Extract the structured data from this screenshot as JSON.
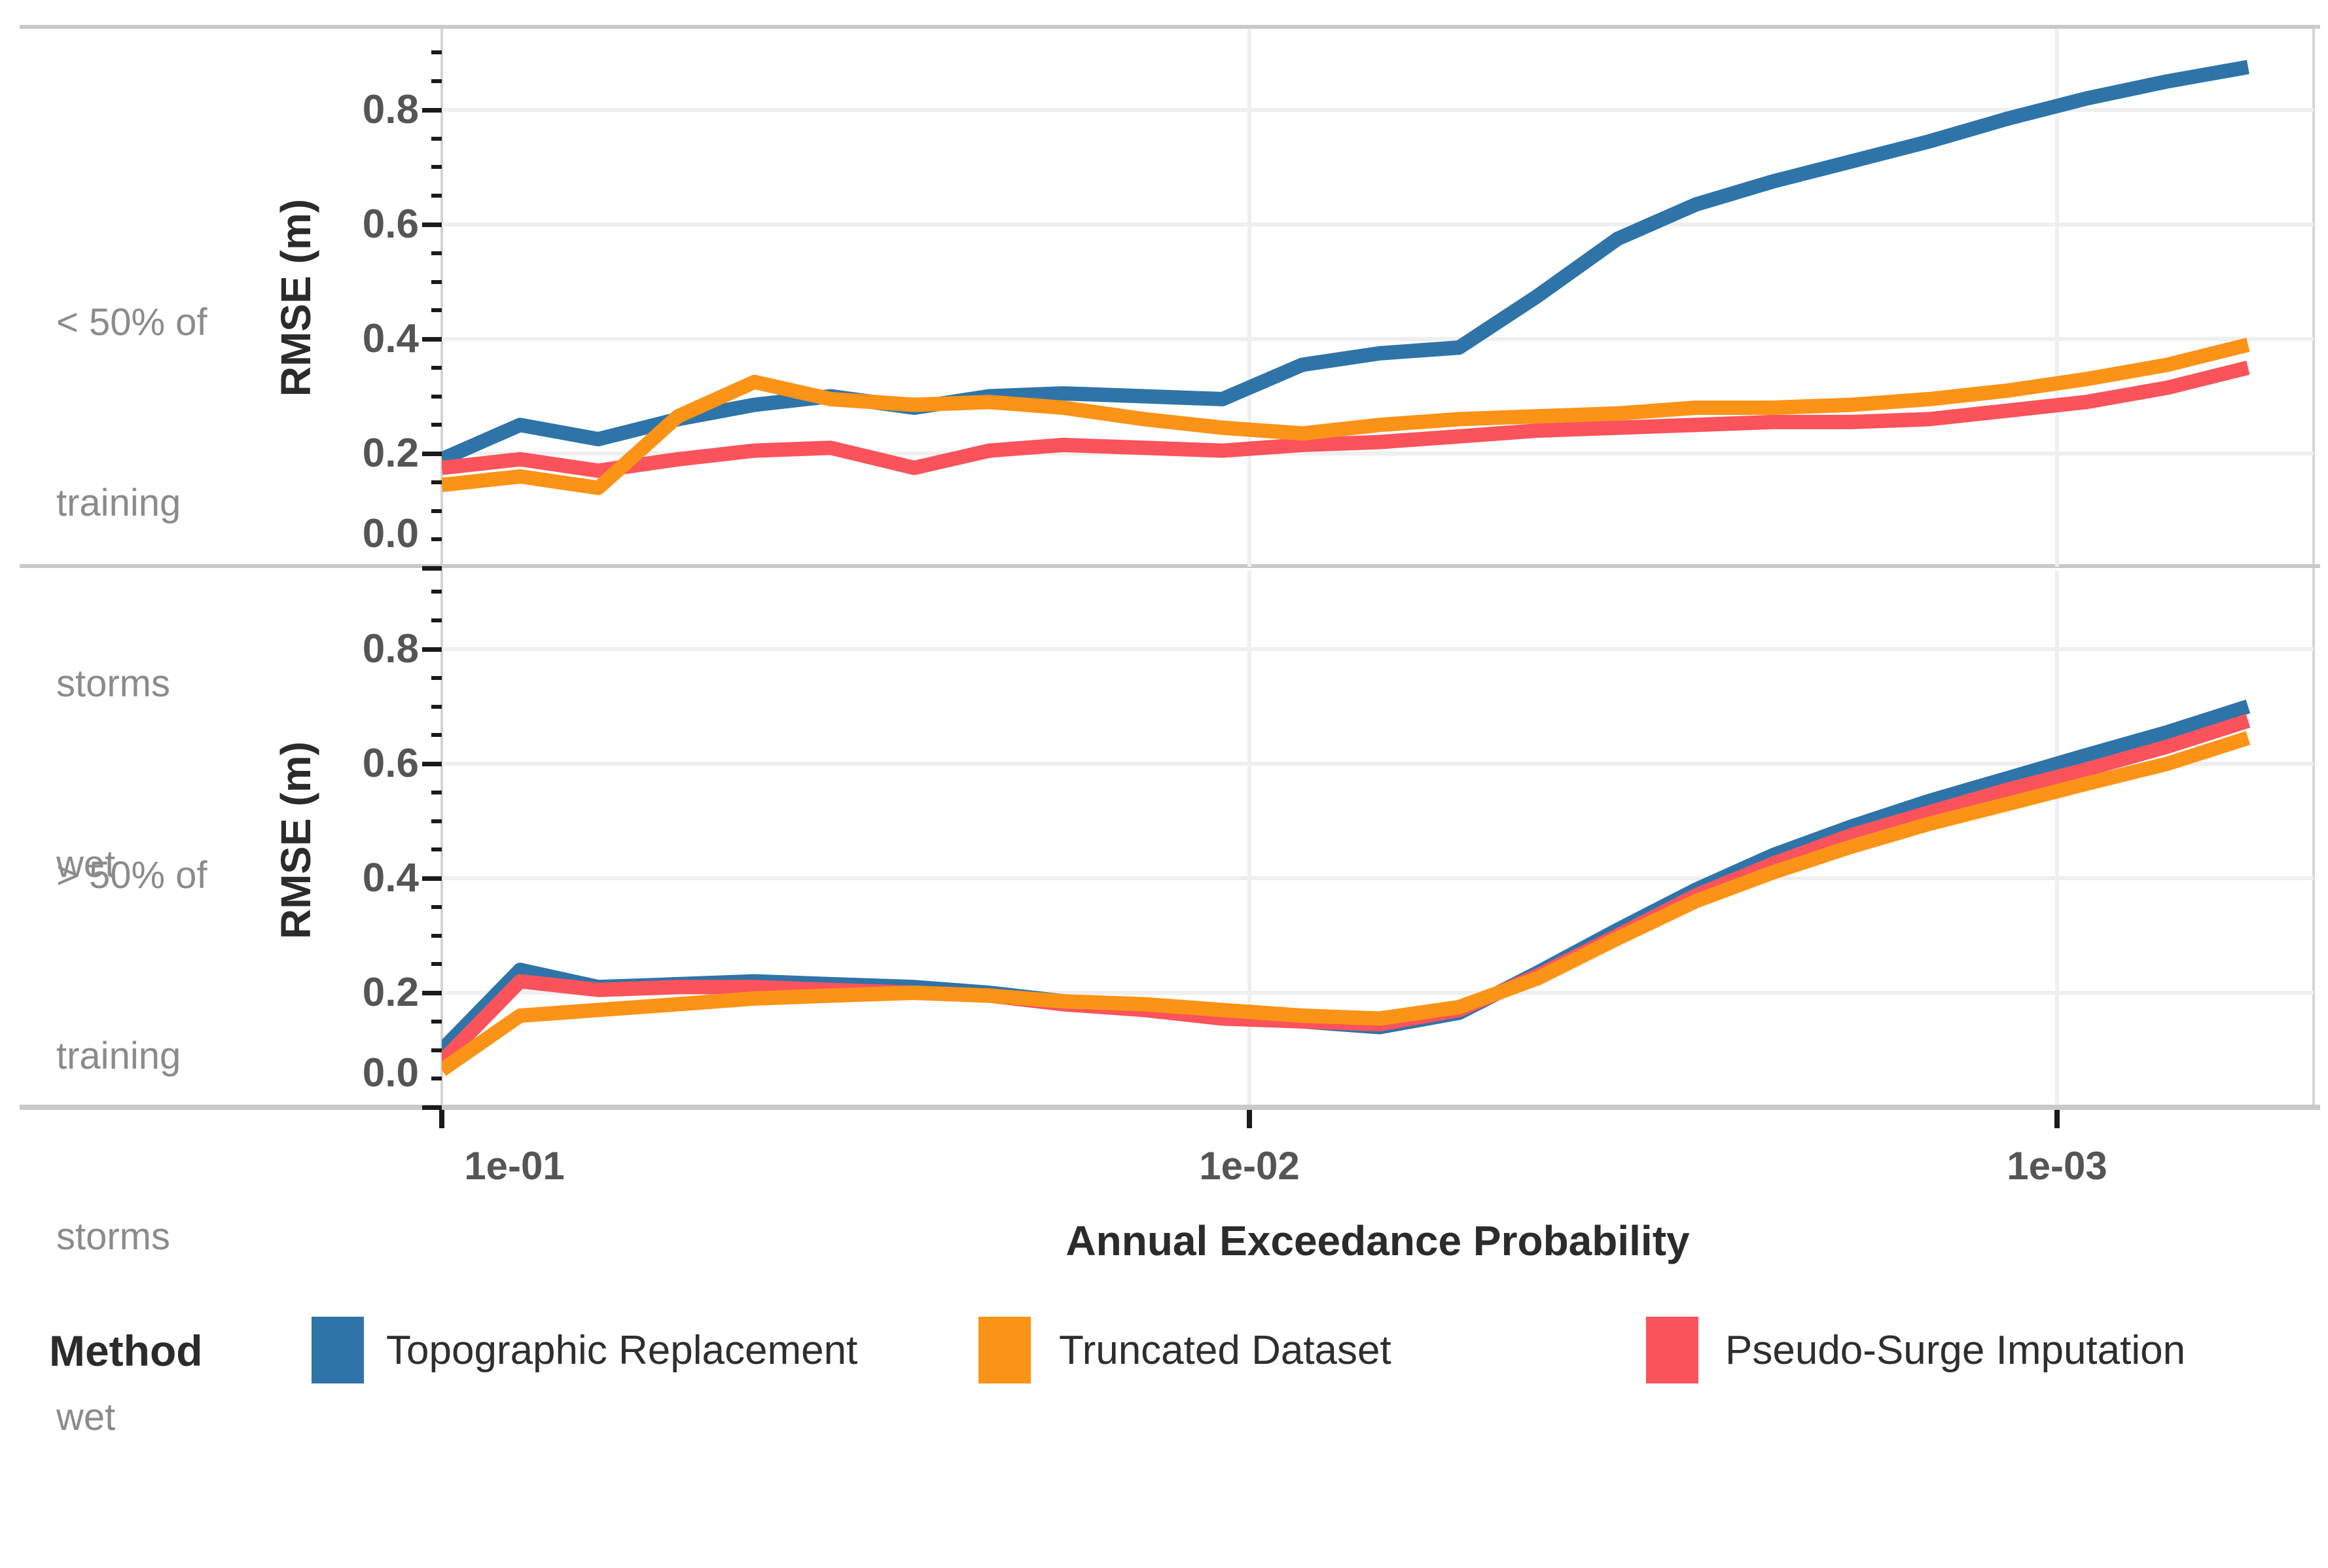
{
  "chart": {
    "x_axis": {
      "title": "Annual Exceedance Probability",
      "tick_labels": [
        "1e-01",
        "1e-02",
        "1e-03"
      ],
      "tick_values": [
        0.1,
        0.01,
        0.001
      ],
      "scale": "log10 reversed"
    },
    "y_axis": {
      "title": "RMSE (m)",
      "tick_labels": [
        "0.0",
        "0.2",
        "0.4",
        "0.6",
        "0.8"
      ],
      "tick_values": [
        0,
        0.2,
        0.4,
        0.6,
        0.8
      ],
      "minor_tick_step": 0.05
    },
    "facets": [
      {
        "label_lines": [
          "< 50% of",
          "training",
          "storms",
          "wet"
        ]
      },
      {
        "label_lines": [
          "> 50% of",
          "training",
          "storms",
          "wet"
        ]
      }
    ],
    "legend": {
      "title": "Method",
      "items": [
        {
          "label": "Topographic Replacement",
          "color": "#2E74A8"
        },
        {
          "label": "Truncated Dataset",
          "color": "#FB9317"
        },
        {
          "label": "Pseudo-Surge Imputation",
          "color": "#FA535C"
        }
      ]
    },
    "colors": {
      "background": "#FFFFFF",
      "gridline": "#EFEFEF",
      "panel_border": "#C9C9C9",
      "tick": "#1A1A1A",
      "tick_label": "#555555",
      "axis_title": "#2B2B2B",
      "facet_label": "#8B8B8B",
      "legend_text": "#2E2E2E"
    }
  },
  "chart_data": {
    "type": "line",
    "title": "",
    "xlabel": "Annual Exceedance Probability",
    "ylabel": "RMSE (m)",
    "x_scale": "log10 reversed",
    "xlim": [
      0.1,
      0.00048
    ],
    "ylim": [
      0,
      0.94
    ],
    "x_ticks": [
      0.1,
      0.01,
      0.001
    ],
    "y_ticks": [
      0,
      0.2,
      0.4,
      0.6,
      0.8
    ],
    "grid": true,
    "legend_title": "Method",
    "legend_position": "bottom",
    "x": [
      0.1,
      0.08,
      0.064,
      0.051,
      0.041,
      0.033,
      0.026,
      0.021,
      0.017,
      0.0135,
      0.0108,
      0.0086,
      0.0069,
      0.0055,
      0.0044,
      0.0035,
      0.0028,
      0.00225,
      0.0018,
      0.00144,
      0.00115,
      0.00092,
      0.00073,
      0.00058
    ],
    "facets": [
      {
        "facet_label": "< 50% of training storms wet",
        "series": [
          {
            "name": "Topographic Replacement",
            "color": "#2E74A8",
            "values": [
              0.19,
              0.25,
              0.225,
              0.26,
              0.285,
              0.3,
              0.28,
              0.3,
              0.305,
              0.3,
              0.295,
              0.355,
              0.375,
              0.385,
              0.475,
              0.575,
              0.635,
              0.675,
              0.71,
              0.745,
              0.785,
              0.82,
              0.85,
              0.875
            ]
          },
          {
            "name": "Truncated Dataset",
            "color": "#FB9317",
            "values": [
              0.145,
              0.16,
              0.14,
              0.265,
              0.325,
              0.295,
              0.285,
              0.29,
              0.28,
              0.26,
              0.245,
              0.235,
              0.25,
              0.26,
              0.265,
              0.27,
              0.28,
              0.28,
              0.285,
              0.295,
              0.31,
              0.33,
              0.355,
              0.39
            ]
          },
          {
            "name": "Pseudo-Surge Imputation",
            "color": "#FA535C",
            "values": [
              0.175,
              0.19,
              0.17,
              0.19,
              0.205,
              0.21,
              0.175,
              0.205,
              0.215,
              0.21,
              0.205,
              0.215,
              0.22,
              0.23,
              0.24,
              0.245,
              0.25,
              0.255,
              0.255,
              0.26,
              0.275,
              0.29,
              0.315,
              0.35
            ]
          }
        ]
      },
      {
        "facet_label": "> 50% of training storms wet",
        "series": [
          {
            "name": "Topographic Replacement",
            "color": "#2E74A8",
            "values": [
              0.1,
              0.24,
              0.21,
              0.215,
              0.22,
              0.215,
              0.21,
              0.2,
              0.185,
              0.175,
              0.16,
              0.15,
              0.14,
              0.165,
              0.235,
              0.31,
              0.38,
              0.44,
              0.49,
              0.535,
              0.575,
              0.615,
              0.655,
              0.7
            ]
          },
          {
            "name": "Truncated Dataset",
            "color": "#FB9317",
            "values": [
              0.065,
              0.16,
              0.17,
              0.18,
              0.19,
              0.195,
              0.2,
              0.195,
              0.185,
              0.18,
              0.17,
              0.16,
              0.155,
              0.175,
              0.225,
              0.295,
              0.36,
              0.41,
              0.455,
              0.495,
              0.53,
              0.565,
              0.6,
              0.645
            ]
          },
          {
            "name": "Pseudo-Surge Imputation",
            "color": "#FA535C",
            "values": [
              0.08,
              0.22,
              0.205,
              0.21,
              0.21,
              0.205,
              0.2,
              0.195,
              0.18,
              0.17,
              0.155,
              0.15,
              0.145,
              0.17,
              0.23,
              0.3,
              0.37,
              0.425,
              0.475,
              0.515,
              0.555,
              0.59,
              0.63,
              0.675
            ]
          }
        ]
      }
    ]
  }
}
